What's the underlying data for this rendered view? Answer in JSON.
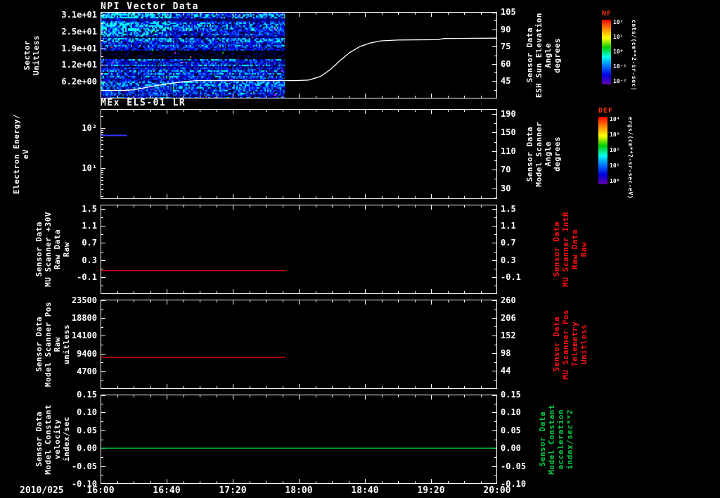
{
  "titles": {
    "panel1": "NPI Vector Data",
    "panel2": "MEx ELS-01 LR"
  },
  "x_axis": {
    "date_label": "2010/025",
    "tick_labels": [
      "16:00",
      "16:40",
      "17:20",
      "18:00",
      "18:40",
      "19:20",
      "20:00"
    ],
    "major_tick_minutes": 40,
    "minor_tick_minutes": 10
  },
  "colorbars": [
    {
      "title": "NF",
      "title_color": "#ff3300",
      "unit": "cnts/(cm**2-sr-sec)",
      "tick_labels": [
        "10²",
        "10¹",
        "10⁰",
        "10⁻¹",
        "10⁻²"
      ],
      "gradient": [
        "#ff0000",
        "#ff8800",
        "#ffff00",
        "#00cc00",
        "#00ffee",
        "#0077ff",
        "#0000dd",
        "#6600aa"
      ]
    },
    {
      "title": "DEF",
      "title_color": "#ff3300",
      "unit": "ergs/(cm**2-sr-sec-eV)",
      "tick_labels": [
        "10⁴",
        "10³",
        "10²",
        "10¹",
        "10⁰"
      ],
      "gradient": [
        "#ff0000",
        "#ff8800",
        "#ffff00",
        "#00cc00",
        "#00ffee",
        "#0077ff",
        "#0000dd",
        "#6600aa"
      ]
    }
  ],
  "chart_data": {
    "type": "multi-panel-timeseries",
    "x_minutes_range": [
      0,
      240
    ],
    "x_tick_labels": [
      "16:00",
      "16:40",
      "17:20",
      "18:00",
      "18:40",
      "19:20",
      "20:00"
    ],
    "date": "2010/025",
    "panels": [
      {
        "id": "npi-vector",
        "title": "NPI Vector Data",
        "left_axis": {
          "label_lines": [
            "Sector",
            "Unitless"
          ],
          "label_color": "#ffffff",
          "scale": "linear",
          "min": 0,
          "max": 32,
          "ticks": [
            {
              "v": 31,
              "label": "3.1e+01"
            },
            {
              "v": 24.8,
              "label": "2.5e+01"
            },
            {
              "v": 18.6,
              "label": "1.9e+01"
            },
            {
              "v": 12.4,
              "label": "1.2e+01"
            },
            {
              "v": 6.2,
              "label": "6.2e+00"
            }
          ]
        },
        "right_axis": {
          "label_lines": [
            "Sensor Data",
            "ESH Sun Elevation",
            "Angle",
            "degrees"
          ],
          "label_color": "#ffffff",
          "scale": "linear",
          "min": 30,
          "max": 105,
          "ticks": [
            {
              "v": 105,
              "label": "105"
            },
            {
              "v": 90,
              "label": "90"
            },
            {
              "v": 75,
              "label": "75"
            },
            {
              "v": 60,
              "label": "60"
            },
            {
              "v": 45,
              "label": "45"
            }
          ]
        },
        "series": [
          {
            "name": "esh-sun-elevation-angle",
            "axis": "right",
            "color": "#ffffff",
            "width": 1.3,
            "points": [
              [
                0,
                37
              ],
              [
                14,
                37
              ],
              [
                20,
                37.5
              ],
              [
                35,
                41.5
              ],
              [
                50,
                44.5
              ],
              [
                58,
                45.5
              ],
              [
                118,
                45.5
              ],
              [
                126,
                46
              ],
              [
                133,
                49
              ],
              [
                139,
                55
              ],
              [
                145,
                63
              ],
              [
                151,
                70
              ],
              [
                157,
                75
              ],
              [
                163,
                78
              ],
              [
                170,
                80
              ],
              [
                180,
                80.7
              ],
              [
                204,
                81
              ],
              [
                208,
                82
              ],
              [
                240,
                82.3
              ]
            ]
          }
        ],
        "heatmap": {
          "name": "npi-sector-spectrogram",
          "t_range_minutes": [
            0,
            111
          ],
          "palette": [
            "#000000",
            "#000077",
            "#0000cc",
            "#0022ff",
            "#0066ff",
            "#00aaff",
            "#00ffff"
          ],
          "gap_band_frac": [
            0.44,
            0.53
          ],
          "bright_top_frac": 0.28,
          "bright_until_frac": 0.38,
          "speck_colors": [
            "#ff33ff",
            "#00ff88",
            "#ff5533"
          ]
        }
      },
      {
        "id": "els-lr",
        "title": "MEx ELS-01 LR",
        "left_axis": {
          "label_lines": [
            "Electron Energy/",
            "eV"
          ],
          "label_color": "#ffffff",
          "scale": "log",
          "min": 1.7,
          "max": 300,
          "ticks": [
            {
              "v": 100,
              "label": "10²"
            },
            {
              "v": 10,
              "label": "10¹"
            }
          ]
        },
        "right_axis": {
          "label_lines": [
            "Sensor Data",
            "Model Scanner",
            "Angle",
            "degrees"
          ],
          "label_color": "#ffffff",
          "scale": "linear",
          "min": 6.8,
          "max": 200.7,
          "ticks": [
            {
              "v": 190,
              "label": "190"
            },
            {
              "v": 150,
              "label": "150"
            },
            {
              "v": 110,
              "label": "110"
            },
            {
              "v": 70,
              "label": "70"
            },
            {
              "v": 30,
              "label": "30"
            }
          ]
        },
        "series": [
          {
            "name": "electron-energy-trace",
            "axis": "left",
            "color": "#3333ff",
            "width": 2,
            "points": [
              [
                0,
                66
              ],
              [
                16,
                66
              ]
            ]
          }
        ],
        "heatmap": null
      },
      {
        "id": "mu-scanner-30v",
        "title": "",
        "left_axis": {
          "label_lines": [
            "Sensor Data",
            "MU Scanner +30V",
            "Raw Data",
            "Raw"
          ],
          "label_color": "#ffffff",
          "scale": "linear",
          "min": -0.5,
          "max": 1.6,
          "ticks": [
            {
              "v": 1.5,
              "label": "1.5"
            },
            {
              "v": 1.1,
              "label": "1.1"
            },
            {
              "v": 0.7,
              "label": "0.7"
            },
            {
              "v": 0.3,
              "label": "0.3"
            },
            {
              "v": -0.1,
              "label": "-0.1"
            }
          ]
        },
        "right_axis": {
          "label_lines": [
            "Sensor Data",
            "MU Scanner IntR",
            "Raw Data",
            "Raw"
          ],
          "label_color": "#ff1111",
          "scale": "linear",
          "min": -0.5,
          "max": 1.6,
          "ticks": [
            {
              "v": 1.5,
              "label": "1.5"
            },
            {
              "v": 1.1,
              "label": "1.1"
            },
            {
              "v": 0.7,
              "label": "0.7"
            },
            {
              "v": 0.3,
              "label": "0.3"
            },
            {
              "v": -0.1,
              "label": "-0.1"
            }
          ]
        },
        "series": [
          {
            "name": "mu-scanner-30v-raw",
            "axis": "left",
            "color": "#ff0000",
            "width": 1.2,
            "points": [
              [
                0,
                0.05
              ],
              [
                112,
                0.05
              ]
            ]
          }
        ],
        "heatmap": null
      },
      {
        "id": "model-scanner-pos",
        "title": "",
        "left_axis": {
          "label_lines": [
            "Sensor Data",
            "Model Scanner Pos",
            "Raw",
            "unitless"
          ],
          "label_color": "#ffffff",
          "scale": "linear",
          "min": 0,
          "max": 23700,
          "ticks": [
            {
              "v": 23500,
              "label": "23500"
            },
            {
              "v": 18800,
              "label": "18800"
            },
            {
              "v": 14100,
              "label": "14100"
            },
            {
              "v": 9400,
              "label": "9400"
            },
            {
              "v": 4700,
              "label": "4700"
            }
          ]
        },
        "right_axis": {
          "label_lines": [
            "Sensor Data",
            "MU Scanner Pos",
            "Telemetry",
            "Unitless"
          ],
          "label_color": "#ff1111",
          "scale": "linear",
          "min": -12,
          "max": 262,
          "ticks": [
            {
              "v": 260,
              "label": "260"
            },
            {
              "v": 206,
              "label": "206"
            },
            {
              "v": 152,
              "label": "152"
            },
            {
              "v": 98,
              "label": "98"
            },
            {
              "v": 44,
              "label": "44"
            }
          ]
        },
        "series": [
          {
            "name": "model-scanner-pos-raw",
            "axis": "left",
            "color": "#ff0000",
            "width": 1.2,
            "points": [
              [
                0,
                8400
              ],
              [
                112,
                8400
              ]
            ]
          }
        ],
        "heatmap": null
      },
      {
        "id": "model-constant-velocity",
        "title": "",
        "left_axis": {
          "label_lines": [
            "Sensor Data",
            "Model Constant",
            "velocity",
            "index/sec"
          ],
          "label_color": "#ffffff",
          "scale": "linear",
          "min": -0.1,
          "max": 0.15,
          "ticks": [
            {
              "v": 0.15,
              "label": "0.15"
            },
            {
              "v": 0.1,
              "label": "0.10"
            },
            {
              "v": 0.05,
              "label": "0.05"
            },
            {
              "v": 0.0,
              "label": "0.00"
            },
            {
              "v": -0.05,
              "label": "-0.05"
            },
            {
              "v": -0.1,
              "label": "-0.10"
            }
          ]
        },
        "right_axis": {
          "label_lines": [
            "Sensor Data",
            "Model Constant",
            "acceleration",
            "index/sec**2"
          ],
          "label_color": "#00cc44",
          "scale": "linear",
          "min": -0.1,
          "max": 0.15,
          "ticks": [
            {
              "v": 0.15,
              "label": "0.15"
            },
            {
              "v": 0.1,
              "label": "0.10"
            },
            {
              "v": 0.05,
              "label": "0.05"
            },
            {
              "v": 0.0,
              "label": "0.00"
            },
            {
              "v": -0.05,
              "label": "-0.05"
            },
            {
              "v": -0.1,
              "label": "-0.10"
            }
          ]
        },
        "series": [
          {
            "name": "model-constant-velocity",
            "axis": "left",
            "color": "#00bb44",
            "width": 1.3,
            "points": [
              [
                0,
                0.0
              ],
              [
                240,
                0.0
              ]
            ]
          }
        ],
        "heatmap": null
      }
    ]
  }
}
